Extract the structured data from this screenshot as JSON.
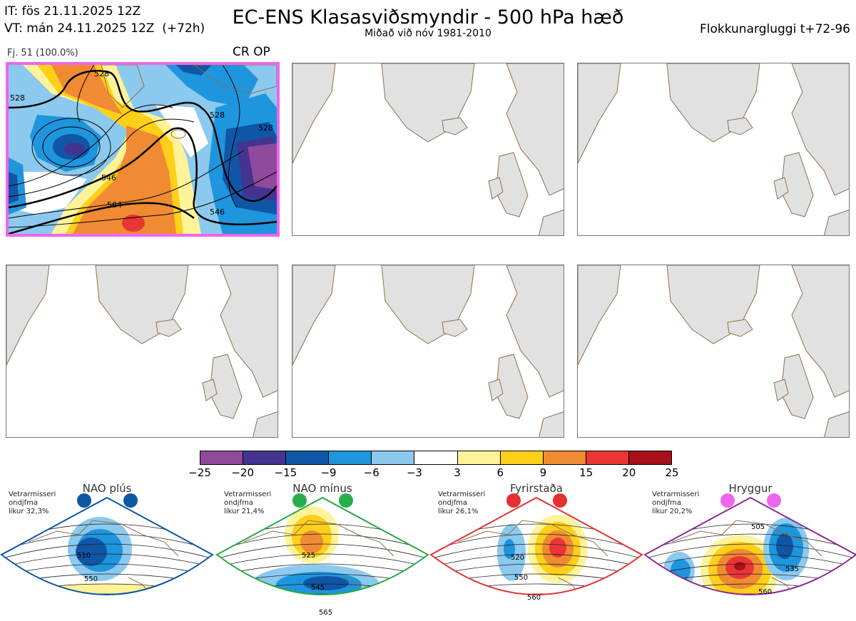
{
  "header": {
    "it_line": "IT: fös 21.11.2025 12Z",
    "vt_line": "VT: mán 24.11.2025 12Z  (+72h)",
    "title": "EC-ENS Klasasviðsmyndir - 500 hPa hæð",
    "subtitle": "Miðað við nóv 1981-2010",
    "window_label": "Flokkunargluggi t+72-96"
  },
  "main_panel": {
    "label": "Fj. 51 (100.0%)",
    "tag": "CR OP",
    "contour_labels": [
      "528",
      "528",
      "528",
      "528",
      "546",
      "564",
      "546"
    ]
  },
  "colors": {
    "land": "#e1e1e1",
    "coast": "#8a7050",
    "highlight_border": "#ee66ee"
  },
  "colorbar": {
    "ticks": [
      "−25",
      "−20",
      "−15",
      "−9",
      "−6",
      "−3",
      "3",
      "6",
      "9",
      "15",
      "20",
      "25"
    ],
    "colors": [
      "#8f4a9c",
      "#44338f",
      "#0f56a7",
      "#1e95dc",
      "#8cc9ee",
      "#ffffff",
      "#fff39a",
      "#ffcf1a",
      "#f08a33",
      "#ea3535",
      "#a80f18"
    ]
  },
  "regimes": [
    {
      "name": "NAO plús",
      "info": "Vetrarmisseri\nondjfma\nlíkur 32,3%",
      "labels": [
        "510",
        "550"
      ],
      "border": "#0b57a4",
      "dot": "#0b57a4"
    },
    {
      "name": "NAO mínus",
      "info": "Vetrarmisseri\nondjfma\nlíkur 21,4%",
      "labels": [
        "525",
        "545",
        "565"
      ],
      "border": "#27a844",
      "dot": "#27b04a"
    },
    {
      "name": "Fyrirstaða",
      "info": "Vetrarmisseri\nondjfma\nlíkur 26,1%",
      "labels": [
        "520",
        "550",
        "560"
      ],
      "border": "#e53030",
      "dot": "#e53030"
    },
    {
      "name": "Hryggur",
      "info": "Vetrarmisseri\nondjfma\nlíkur 20,2%",
      "labels": [
        "505",
        "535",
        "560"
      ],
      "border": "#8b2a8f",
      "dot": "#ee66ee"
    }
  ]
}
